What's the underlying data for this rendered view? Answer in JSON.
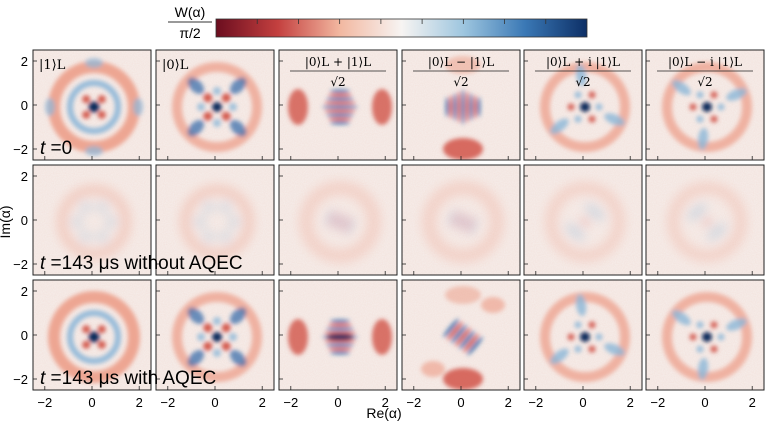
{
  "colorbar": {
    "label_top": "W(α)",
    "label_bottom": "π/2",
    "colors": [
      "#6b0d1f",
      "#c4403f",
      "#f2b7a0",
      "#f7f4f2",
      "#9ec6df",
      "#3a78b5",
      "#0d2f66"
    ]
  },
  "columns": [
    {
      "id": "one",
      "label": "|1⟩L",
      "kind": "ring-one"
    },
    {
      "id": "zero",
      "label": "|0⟩L",
      "kind": "ring-zero"
    },
    {
      "id": "plus",
      "label_num": "|0⟩L + |1⟩L",
      "label_den": "√2",
      "kind": "plus"
    },
    {
      "id": "minus",
      "label_num": "|0⟩L − |1⟩L",
      "label_den": "√2",
      "kind": "minus"
    },
    {
      "id": "plus-i",
      "label_num": "|0⟩L + i |1⟩L",
      "label_den": "√2",
      "kind": "plus-i"
    },
    {
      "id": "minus-i",
      "label_num": "|0⟩L − i |1⟩L",
      "label_den": "√2",
      "kind": "minus-i"
    }
  ],
  "rows": [
    {
      "id": "t0",
      "label_prefix": "t",
      "label_rest": " =0"
    },
    {
      "id": "no-aqec",
      "label_prefix": "t",
      "label_rest": " =143 μs without AQEC"
    },
    {
      "id": "aqec",
      "label_prefix": "t",
      "label_rest": " =143 μs with AQEC"
    }
  ],
  "axes": {
    "xlabel": "Re(α)",
    "ylabel": "Im(α)",
    "xticks": [
      "−2",
      "0",
      "2"
    ],
    "yticks": [
      "2",
      "0",
      "−2"
    ]
  }
}
